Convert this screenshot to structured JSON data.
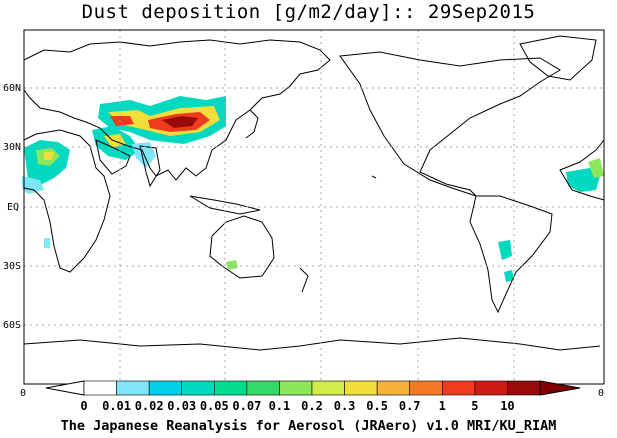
{
  "title": "Dust deposition [g/m2/day]:: 29Sep2015",
  "footer": "The Japanese Reanalysis for Aerosol (JRAero) v1.0 MRI/KU_RIAM",
  "lat_labels": [
    "60N",
    "30N",
    "EQ",
    "30S",
    "60S"
  ],
  "frame_corner_labels": [
    "0",
    "0"
  ],
  "colorbar": {
    "tick_labels": [
      "0",
      "0.01",
      "0.02",
      "0.03",
      "0.05",
      "0.07",
      "0.1",
      "0.2",
      "0.3",
      "0.5",
      "0.7",
      "1",
      "5",
      "10"
    ],
    "colors": [
      "#ffffff",
      "#7fe6f8",
      "#00cfe8",
      "#00d8c0",
      "#00dc8c",
      "#33d966",
      "#8ce65c",
      "#d2ec4a",
      "#f2de3a",
      "#f7b23a",
      "#f47a28",
      "#ee3a1e",
      "#cc1a14",
      "#9a0a0a"
    ],
    "low_arrow_color": "#ffffff",
    "high_arrow_color": "#800000"
  },
  "land_color": "#ffffff",
  "ocean_color": "#ffffff",
  "grid_color": "#aaaaaa"
}
